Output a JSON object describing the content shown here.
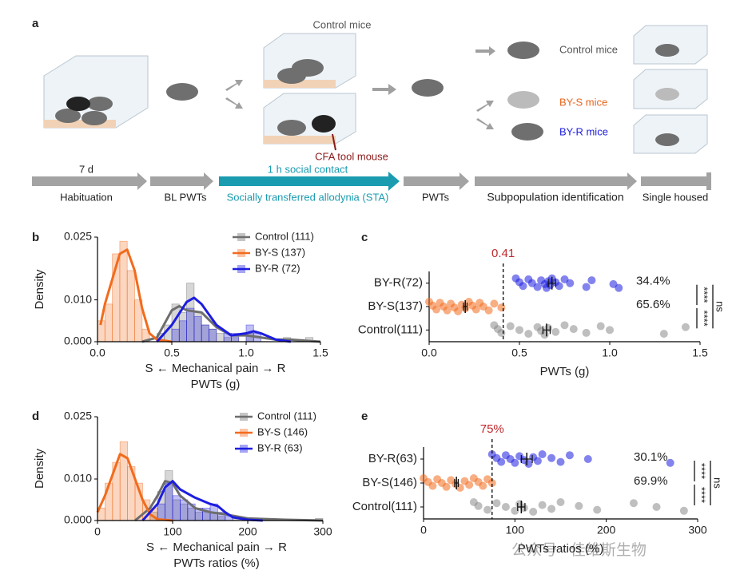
{
  "diagram": {
    "panel_label": "a",
    "top_control": "Control mice",
    "tool_mouse": "CFA tool mouse",
    "groups": [
      "Control mice",
      "BY-S mice",
      "BY-R mice"
    ],
    "duration": "7 d",
    "contact": "1 h social contact",
    "stages": [
      "Habituation",
      "BL PWTs",
      "Socially transferred allodynia (STA)",
      "PWTs",
      "Subpopulation identification",
      "Single housed"
    ]
  },
  "chart_data": [
    {
      "type": "histogram",
      "panel_label": "b",
      "ylabel": "Density",
      "axis_note": "S ←  Mechanical pain → R",
      "xlabel": "PWTs (g)",
      "xlim": [
        0,
        1.5
      ],
      "xticks": [
        {
          "value": 0,
          "label": "0.0"
        },
        {
          "value": 0.5,
          "label": "0.5"
        },
        {
          "value": 1,
          "label": "1.0"
        },
        {
          "value": 1.5,
          "label": "1.5"
        }
      ],
      "ylim": [
        0,
        0.025
      ],
      "yticks": [
        {
          "value": 0,
          "label": "0.000"
        },
        {
          "value": 0.01,
          "label": "0.010"
        },
        {
          "value": 0.025,
          "label": "0.025"
        }
      ],
      "legend": "top-right",
      "bins": [
        0,
        0.05,
        0.1,
        0.15,
        0.2,
        0.25,
        0.3,
        0.35,
        0.4,
        0.45,
        0.5,
        0.55,
        0.6,
        0.65,
        0.7,
        0.75,
        0.8,
        0.85,
        0.9,
        0.95,
        1,
        1.05,
        1.1,
        1.15,
        1.2,
        1.25,
        1.3,
        1.35,
        1.4,
        1.45,
        1.5
      ],
      "series": [
        {
          "name": "Control (111)",
          "color": "#6e6e6e",
          "values": [
            0,
            0,
            0,
            0,
            0,
            0,
            0,
            0,
            0.002,
            0.004,
            0.009,
            0.007,
            0.014,
            0.007,
            0.004,
            0.003,
            0.002,
            0.001,
            0.001,
            0,
            0.002,
            0,
            0,
            0,
            0,
            0.001,
            0,
            0,
            0.001,
            0
          ],
          "curve": {
            "x": [
              0.3,
              0.4,
              0.5,
              0.55,
              0.6,
              0.7,
              0.8,
              0.9,
              1.0,
              1.1,
              1.2,
              1.3,
              1.5
            ],
            "y": [
              0,
              0.001,
              0.0075,
              0.0085,
              0.0075,
              0.007,
              0.0035,
              0.0015,
              0.0015,
              0.001,
              0.0005,
              0.0005,
              0
            ]
          }
        },
        {
          "name": "BY-S (137)",
          "color": "#f26b1d",
          "values": [
            0.005,
            0.009,
            0.021,
            0.024,
            0.017,
            0.01,
            0.003,
            0,
            0,
            0,
            0,
            0,
            0,
            0,
            0,
            0,
            0,
            0,
            0,
            0,
            0,
            0,
            0,
            0,
            0,
            0,
            0,
            0,
            0,
            0
          ],
          "curve": {
            "x": [
              0.02,
              0.05,
              0.1,
              0.15,
              0.2,
              0.25,
              0.3,
              0.35,
              0.4,
              0.5
            ],
            "y": [
              0.004,
              0.009,
              0.015,
              0.021,
              0.022,
              0.017,
              0.008,
              0.002,
              0.0005,
              0
            ]
          }
        },
        {
          "name": "BY-R (72)",
          "color": "#1d1de0",
          "values": [
            0,
            0,
            0,
            0,
            0,
            0,
            0,
            0,
            0,
            0,
            0.003,
            0.005,
            0.008,
            0.006,
            0.004,
            0.003,
            0,
            0.002,
            0.002,
            0,
            0.004,
            0.002,
            0,
            0,
            0,
            0,
            0,
            0,
            0,
            0
          ],
          "curve": {
            "x": [
              0.4,
              0.5,
              0.6,
              0.65,
              0.7,
              0.8,
              0.9,
              1.0,
              1.05,
              1.1,
              1.2,
              1.3
            ],
            "y": [
              0,
              0.004,
              0.0095,
              0.0105,
              0.009,
              0.004,
              0.0015,
              0.002,
              0.0025,
              0.002,
              0.0005,
              0
            ]
          }
        }
      ]
    },
    {
      "type": "strip",
      "panel_label": "c",
      "xlabel": "PWTs (g)",
      "xlim": [
        0,
        1.5
      ],
      "xticks": [
        {
          "value": 0,
          "label": "0.0"
        },
        {
          "value": 0.5,
          "label": "0.5"
        },
        {
          "value": 1,
          "label": "1.0"
        },
        {
          "value": 1.5,
          "label": "1.5"
        }
      ],
      "threshold": {
        "value": 0.41,
        "label": "0.41"
      },
      "percent_labels": [
        "34.4%",
        "65.6%",
        null
      ],
      "significance": [
        "****",
        "****",
        "ns"
      ],
      "groups": [
        {
          "name": "BY-R(72)",
          "color": "#1d1de0",
          "points": [
            0.48,
            0.5,
            0.52,
            0.55,
            0.57,
            0.6,
            0.62,
            0.64,
            0.65,
            0.66,
            0.67,
            0.68,
            0.7,
            0.72,
            0.75,
            0.78,
            0.87,
            0.9,
            1.02,
            1.05
          ],
          "mean": 0.68,
          "sem": 0.02
        },
        {
          "name": "BY-S(137)",
          "color": "#f26b1d",
          "points": [
            0,
            0.02,
            0.04,
            0.06,
            0.08,
            0.1,
            0.12,
            0.14,
            0.16,
            0.18,
            0.2,
            0.22,
            0.24,
            0.26,
            0.28,
            0.3,
            0.33,
            0.36,
            0.4
          ],
          "mean": 0.2,
          "sem": 0.01
        },
        {
          "name": "Control(111)",
          "color": "#8a8a8a",
          "points": [
            0.36,
            0.38,
            0.4,
            0.45,
            0.5,
            0.55,
            0.6,
            0.62,
            0.64,
            0.66,
            0.7,
            0.75,
            0.8,
            0.87,
            0.95,
            1.0,
            1.3,
            1.42
          ],
          "mean": 0.65,
          "sem": 0.02
        }
      ]
    },
    {
      "type": "histogram",
      "panel_label": "d",
      "ylabel": "Density",
      "axis_note": "S ←  Mechanical pain → R",
      "xlabel": "PWTs ratios (%)",
      "xlim": [
        0,
        300
      ],
      "xticks": [
        0,
        100,
        200,
        300
      ],
      "ylim": [
        0,
        0.025
      ],
      "yticks": [
        {
          "value": 0,
          "label": "0.000"
        },
        {
          "value": 0.01,
          "label": "0.010"
        },
        {
          "value": 0.025,
          "label": "0.025"
        }
      ],
      "legend": "top-right",
      "bins": [
        0,
        10,
        20,
        30,
        40,
        50,
        60,
        70,
        80,
        90,
        100,
        110,
        120,
        130,
        140,
        150,
        160,
        170,
        180,
        190,
        200,
        210,
        220,
        230,
        240,
        250,
        260,
        270,
        280,
        290,
        300
      ],
      "series": [
        {
          "name": "Control (111)",
          "color": "#6e6e6e",
          "values": [
            0,
            0,
            0,
            0,
            0,
            0,
            0,
            0.002,
            0.007,
            0.012,
            0.005,
            0.004,
            0.003,
            0.002,
            0.002,
            0.002,
            0.001,
            0,
            0.001,
            0,
            0.0005,
            0,
            0,
            0,
            0,
            0,
            0,
            0,
            0,
            0.0005
          ],
          "curve": {
            "x": [
              50,
              70,
              80,
              90,
              100,
              110,
              130,
              150,
              170,
              200,
              250,
              300
            ],
            "y": [
              0,
              0.003,
              0.006,
              0.0095,
              0.009,
              0.006,
              0.003,
              0.002,
              0.0015,
              0.0005,
              0.0002,
              0
            ]
          }
        },
        {
          "name": "BY-S (146)",
          "color": "#f26b1d",
          "values": [
            0.003,
            0.009,
            0.014,
            0.019,
            0.013,
            0.009,
            0.005,
            0.003,
            0,
            0,
            0,
            0,
            0,
            0,
            0,
            0,
            0,
            0,
            0,
            0,
            0,
            0,
            0,
            0,
            0,
            0,
            0,
            0,
            0,
            0
          ],
          "curve": {
            "x": [
              0,
              10,
              20,
              30,
              40,
              50,
              60,
              70,
              80,
              100
            ],
            "y": [
              0.002,
              0.006,
              0.011,
              0.016,
              0.015,
              0.01,
              0.005,
              0.0015,
              0.0003,
              0
            ]
          }
        },
        {
          "name": "BY-R (63)",
          "color": "#1d1de0",
          "values": [
            0,
            0,
            0,
            0,
            0,
            0,
            0,
            0,
            0.004,
            0.009,
            0.006,
            0.005,
            0.004,
            0.003,
            0.003,
            0.004,
            0.002,
            0.001,
            0,
            0,
            0,
            0,
            0,
            0,
            0,
            0,
            0,
            0,
            0,
            0
          ],
          "curve": {
            "x": [
              60,
              80,
              90,
              100,
              110,
              130,
              150,
              160,
              170,
              180,
              200,
              220
            ],
            "y": [
              0,
              0.004,
              0.008,
              0.0095,
              0.0075,
              0.0055,
              0.004,
              0.0035,
              0.002,
              0.0008,
              0.0002,
              0
            ]
          }
        }
      ]
    },
    {
      "type": "strip",
      "panel_label": "e",
      "xlabel": "PWTs ratios (%)",
      "xlim": [
        0,
        300
      ],
      "xticks": [
        0,
        100,
        200,
        300
      ],
      "threshold": {
        "value": 75,
        "label": "75%"
      },
      "percent_labels": [
        "30.1%",
        "69.9%",
        null
      ],
      "significance": [
        "****",
        "****",
        "ns"
      ],
      "groups": [
        {
          "name": "BY-R(63)",
          "color": "#1d1de0",
          "points": [
            75,
            80,
            85,
            90,
            95,
            100,
            105,
            110,
            115,
            120,
            125,
            130,
            140,
            150,
            160,
            180,
            270
          ],
          "mean": 113,
          "sem": 6
        },
        {
          "name": "BY-S(146)",
          "color": "#f26b1d",
          "points": [
            0,
            5,
            10,
            15,
            20,
            25,
            30,
            35,
            40,
            45,
            50,
            55,
            60,
            65,
            70,
            75
          ],
          "mean": 36,
          "sem": 2
        },
        {
          "name": "Control(111)",
          "color": "#8a8a8a",
          "points": [
            55,
            60,
            70,
            80,
            90,
            100,
            105,
            110,
            120,
            130,
            140,
            150,
            170,
            190,
            230,
            255,
            285
          ],
          "mean": 107,
          "sem": 4
        }
      ]
    }
  ],
  "watermark": "公众号 · 佳维斯生物"
}
